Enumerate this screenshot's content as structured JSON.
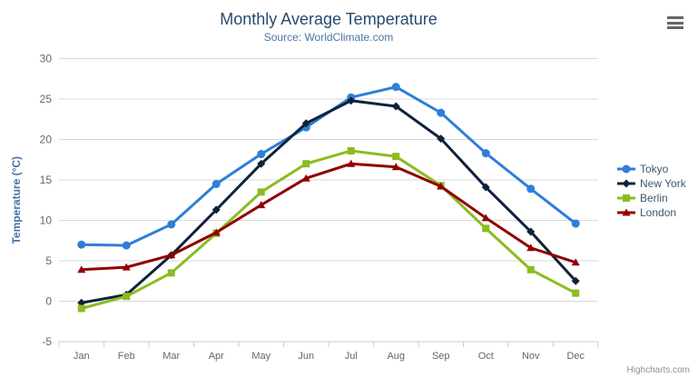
{
  "header": {
    "title": "Monthly Average Temperature",
    "subtitle": "Source: WorldClimate.com"
  },
  "toolbar": {
    "context_menu_icon": "hamburger-icon"
  },
  "credits": {
    "label": "Highcharts.com"
  },
  "chart_data": {
    "type": "line",
    "title": "Monthly Average Temperature",
    "subtitle": "Source: WorldClimate.com",
    "categories": [
      "Jan",
      "Feb",
      "Mar",
      "Apr",
      "May",
      "Jun",
      "Jul",
      "Aug",
      "Sep",
      "Oct",
      "Nov",
      "Dec"
    ],
    "series": [
      {
        "name": "Tokyo",
        "color": "#2f7ed8",
        "marker": "circle",
        "values": [
          7.0,
          6.9,
          9.5,
          14.5,
          18.2,
          21.5,
          25.2,
          26.5,
          23.3,
          18.3,
          13.9,
          9.6
        ]
      },
      {
        "name": "New York",
        "color": "#0d233a",
        "marker": "diamond",
        "values": [
          -0.2,
          0.8,
          5.7,
          11.3,
          17.0,
          22.0,
          24.8,
          24.1,
          20.1,
          14.1,
          8.6,
          2.5
        ]
      },
      {
        "name": "Berlin",
        "color": "#8bbc21",
        "marker": "square",
        "values": [
          -0.9,
          0.6,
          3.5,
          8.4,
          13.5,
          17.0,
          18.6,
          17.9,
          14.3,
          9.0,
          3.9,
          1.0
        ]
      },
      {
        "name": "London",
        "color": "#910000",
        "marker": "triangle",
        "values": [
          3.9,
          4.2,
          5.7,
          8.5,
          11.9,
          15.2,
          17.0,
          16.6,
          14.2,
          10.3,
          6.6,
          4.8
        ]
      }
    ],
    "xlabel": "",
    "ylabel": "Temperature (°C)",
    "ylim": [
      -5,
      30
    ],
    "yticks": [
      -5,
      0,
      5,
      10,
      15,
      20,
      25,
      30
    ],
    "grid": "horizontal",
    "legend_position": "right"
  },
  "colors": {
    "title": "#274b6d",
    "subtitle": "#4d759e",
    "axis_label": "#666666",
    "y_axis_title": "#4572a7",
    "gridline": "#d8d8d8",
    "axis_line": "#c0d0e0",
    "legend_text": "#3e576f",
    "credits_text": "#909090"
  }
}
